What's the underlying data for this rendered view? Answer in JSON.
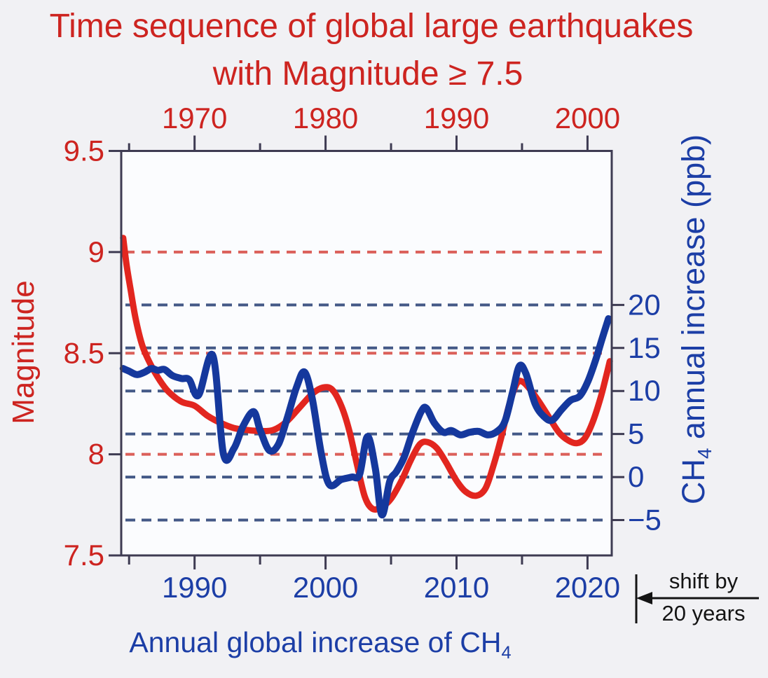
{
  "title": {
    "line1": "Time sequence of global large earthquakes",
    "line2": "with Magnitude ≥ 7.5"
  },
  "labels": {
    "magnitude_axis": "Magnitude",
    "ch4_axis_pre": "CH",
    "ch4_axis_sub": "4",
    "ch4_axis_post": " annual increase (ppb)",
    "bottom_title_pre": "Annual global increase of CH",
    "bottom_title_sub": "4",
    "shift_line1": "shift by",
    "shift_line2": "20 years"
  },
  "colors": {
    "background": "#f1f1f4",
    "plot_background": "#fbfcfe",
    "red_text": "#cd2420",
    "red_curve": "#e2261f",
    "red_grid": "#d9534d",
    "blue_text": "#1c3ea6",
    "blue_curve": "#15389d",
    "blue_grid": "#3b5181",
    "axis": "#3e3b52",
    "black_text": "#141414"
  },
  "chart_data": {
    "type": "line",
    "title": "Time sequence of global large earthquakes with Magnitude ≥ 7.5",
    "layout_hints": {
      "grid": "dashed horizontal gridlines only",
      "legend": "none; series identified by axis colors",
      "note": "red magnitude series is plotted against the top axis, which is the bottom axis shifted by 20 years"
    },
    "axes": {
      "x_bottom": {
        "min": 1984.4,
        "max": 2021.85,
        "major_ticks": [
          1990,
          2000,
          2010,
          2020
        ],
        "major_tick_labels": [
          "1990",
          "2000",
          "2010",
          "2020"
        ],
        "minor_ticks": [
          1985,
          1995,
          2005,
          2015
        ],
        "axis_title": "Annual global increase of CH4"
      },
      "x_top": {
        "shift_years": 20,
        "min": 1964.4,
        "max": 2001.85,
        "major_ticks": [
          1970,
          1980,
          1990,
          2000
        ],
        "major_tick_labels": [
          "1970",
          "1980",
          "1990",
          "2000"
        ],
        "minor_ticks": [
          1965,
          1975,
          1985,
          1995
        ]
      },
      "y_left": {
        "min": 7.5,
        "max": 9.5,
        "ticks": [
          9.5,
          9,
          8.5,
          8,
          7.5
        ],
        "tick_labels": [
          "9.5",
          "9",
          "8.5",
          "8",
          "7.5"
        ],
        "gridlines": [
          9,
          8.5,
          8
        ],
        "axis_title": "Magnitude"
      },
      "y_right": {
        "min": -9.11,
        "max": 37.89,
        "ticks": [
          20,
          15,
          10,
          5,
          0,
          -5
        ],
        "tick_labels": [
          "20",
          "15",
          "10",
          "5",
          "0",
          "−5"
        ],
        "gridlines": [
          20,
          15,
          10,
          5,
          0,
          -5
        ],
        "axis_title": "CH4 annual increase (ppb)"
      }
    },
    "series": [
      {
        "name": "Smoothed magnitude of global large earthquakes (M ≥ 7.5)",
        "x_axis": "top",
        "y_axis": "left",
        "color_key": "red_curve",
        "width": 9,
        "points": [
          [
            1964.55,
            9.07
          ],
          [
            1964.8,
            8.94
          ],
          [
            1965.1,
            8.82
          ],
          [
            1965.5,
            8.67
          ],
          [
            1966,
            8.54
          ],
          [
            1966.6,
            8.45
          ],
          [
            1967.3,
            8.37
          ],
          [
            1968,
            8.31
          ],
          [
            1969,
            8.26
          ],
          [
            1970,
            8.24
          ],
          [
            1971,
            8.19
          ],
          [
            1972,
            8.155
          ],
          [
            1973,
            8.13
          ],
          [
            1974,
            8.12
          ],
          [
            1975,
            8.115
          ],
          [
            1976,
            8.12
          ],
          [
            1977,
            8.16
          ],
          [
            1978,
            8.23
          ],
          [
            1979,
            8.3
          ],
          [
            1979.8,
            8.33
          ],
          [
            1980.5,
            8.32
          ],
          [
            1981.2,
            8.24
          ],
          [
            1981.8,
            8.12
          ],
          [
            1982.4,
            7.95
          ],
          [
            1983,
            7.79
          ],
          [
            1983.6,
            7.73
          ],
          [
            1984.3,
            7.74
          ],
          [
            1985,
            7.78
          ],
          [
            1985.8,
            7.87
          ],
          [
            1986.5,
            7.97
          ],
          [
            1987.2,
            8.05
          ],
          [
            1987.8,
            8.06
          ],
          [
            1988.5,
            8.03
          ],
          [
            1989.2,
            7.96
          ],
          [
            1990,
            7.87
          ],
          [
            1990.7,
            7.815
          ],
          [
            1991.5,
            7.795
          ],
          [
            1992.2,
            7.83
          ],
          [
            1992.8,
            7.94
          ],
          [
            1993.4,
            8.08
          ],
          [
            1994,
            8.24
          ],
          [
            1994.6,
            8.35
          ],
          [
            1995,
            8.36
          ],
          [
            1995.5,
            8.33
          ],
          [
            1996.2,
            8.27
          ],
          [
            1997,
            8.19
          ],
          [
            1997.8,
            8.11
          ],
          [
            1998.5,
            8.07
          ],
          [
            1999.2,
            8.055
          ],
          [
            1999.8,
            8.08
          ],
          [
            2000.4,
            8.16
          ],
          [
            2001,
            8.28
          ],
          [
            2001.4,
            8.38
          ],
          [
            2001.7,
            8.46
          ]
        ]
      },
      {
        "name": "CH4 annual increase (ppb)",
        "x_axis": "bottom",
        "y_axis": "right",
        "color_key": "blue_curve",
        "width": 10,
        "points": [
          [
            1984.55,
            12.6
          ],
          [
            1985,
            12.3
          ],
          [
            1985.6,
            11.9
          ],
          [
            1986.2,
            12.2
          ],
          [
            1986.7,
            12.6
          ],
          [
            1987.2,
            12.4
          ],
          [
            1987.7,
            12.5
          ],
          [
            1988.3,
            11.8
          ],
          [
            1989,
            11.45
          ],
          [
            1989.6,
            11.3
          ],
          [
            1990.3,
            9.5
          ],
          [
            1991.4,
            14.1
          ],
          [
            1992.2,
            2.7
          ],
          [
            1993,
            3.3
          ],
          [
            1993.7,
            5.9
          ],
          [
            1994.5,
            7.6
          ],
          [
            1995,
            5.5
          ],
          [
            1995.7,
            3.1
          ],
          [
            1996.4,
            3.8
          ],
          [
            1997.1,
            7.0
          ],
          [
            1997.8,
            10.5
          ],
          [
            1998.4,
            12.2
          ],
          [
            1999,
            9.0
          ],
          [
            1999.7,
            2.5
          ],
          [
            2000.3,
            -0.9
          ],
          [
            2001.2,
            -0.3
          ],
          [
            2002,
            0.0
          ],
          [
            2002.6,
            0.3
          ],
          [
            2003.2,
            4.7
          ],
          [
            2003.8,
            1.0
          ],
          [
            2004.3,
            -4.4
          ],
          [
            2004.9,
            -0.5
          ],
          [
            2005.4,
            0.6
          ],
          [
            2006,
            2.3
          ],
          [
            2006.6,
            5.0
          ],
          [
            2007.3,
            7.6
          ],
          [
            2007.7,
            8.0
          ],
          [
            2008.3,
            6.3
          ],
          [
            2009,
            5.2
          ],
          [
            2009.6,
            5.4
          ],
          [
            2010.3,
            4.9
          ],
          [
            2011,
            5.2
          ],
          [
            2011.7,
            5.3
          ],
          [
            2012.4,
            4.9
          ],
          [
            2013.1,
            5.3
          ],
          [
            2013.7,
            6.5
          ],
          [
            2014.3,
            10.0
          ],
          [
            2014.8,
            12.9
          ],
          [
            2015.3,
            12.0
          ],
          [
            2016,
            8.5
          ],
          [
            2016.7,
            7.0
          ],
          [
            2017.3,
            6.6
          ],
          [
            2018,
            7.8
          ],
          [
            2018.7,
            8.9
          ],
          [
            2019.4,
            9.4
          ],
          [
            2020,
            11.0
          ],
          [
            2020.6,
            13.5
          ],
          [
            2021.1,
            16.0
          ],
          [
            2021.6,
            18.4
          ]
        ]
      }
    ],
    "annotation": "shift by 20 years (arrow pointing left from bottom axis 2020 toward the plot)"
  }
}
